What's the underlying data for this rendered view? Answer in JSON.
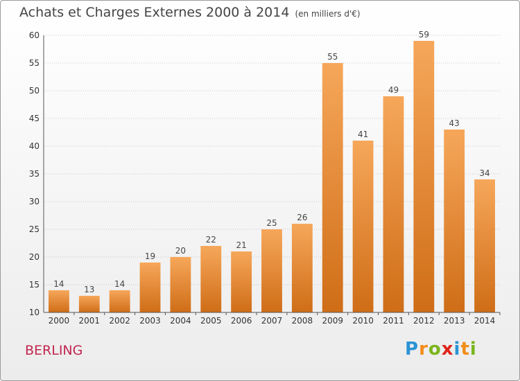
{
  "header": {
    "title": "Achats et Charges Externes 2000 à 2014",
    "unit": "(en milliers d'€)"
  },
  "footer": {
    "commune": "BERLING",
    "brand": "Proxiti",
    "brand_letters": [
      {
        "ch": "P",
        "color": "#2a93d5"
      },
      {
        "ch": "r",
        "color": "#f28c1a"
      },
      {
        "ch": "o",
        "color": "#7ab51d"
      },
      {
        "ch": "x",
        "color": "#e0241b"
      },
      {
        "ch": "i",
        "color": "#2a93d5"
      },
      {
        "ch": "t",
        "color": "#f28c1a"
      },
      {
        "ch": "i",
        "color": "#7ab51d"
      }
    ]
  },
  "colors": {
    "bar_top": "#f6a75a",
    "bar_bottom": "#cf6d17",
    "grid": "#999999"
  },
  "chart_data": {
    "type": "bar",
    "title": "Achats et Charges Externes 2000 à 2014",
    "subtitle": "(en milliers d'€)",
    "categories": [
      "2000",
      "2001",
      "2002",
      "2003",
      "2004",
      "2005",
      "2006",
      "2007",
      "2008",
      "2009",
      "2010",
      "2011",
      "2012",
      "2013",
      "2014"
    ],
    "values": [
      14,
      13,
      14,
      19,
      20,
      22,
      21,
      25,
      26,
      55,
      41,
      49,
      59,
      43,
      34
    ],
    "ylim": [
      10,
      60
    ],
    "yticks": [
      10,
      15,
      20,
      25,
      30,
      35,
      40,
      45,
      50,
      55,
      60
    ],
    "grid": true,
    "data_labels": true
  }
}
